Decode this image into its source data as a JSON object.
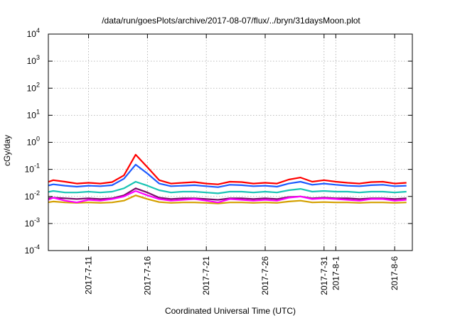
{
  "chart_data": {
    "type": "line",
    "title": "/data/run/goesPlots/archive/2017-08-07/flux/../bryn/31daysMoon.plot",
    "xlabel": "Coordinated Universal Time (UTC)",
    "ylabel": "cGy/day",
    "yscale": "log",
    "ylim": [
      0.0001,
      10000
    ],
    "xlim": [
      "2017-07-07T14:00",
      "2017-08-07T12:00"
    ],
    "grid": true,
    "y_ticks": [
      {
        "value": 0.0001,
        "base": "10",
        "exp": "-4"
      },
      {
        "value": 0.001,
        "base": "10",
        "exp": "-3"
      },
      {
        "value": 0.01,
        "base": "10",
        "exp": "-2"
      },
      {
        "value": 0.1,
        "base": "10",
        "exp": "-1"
      },
      {
        "value": 1,
        "base": "10",
        "exp": "0"
      },
      {
        "value": 10,
        "base": "10",
        "exp": "1"
      },
      {
        "value": 100,
        "base": "10",
        "exp": "2"
      },
      {
        "value": 1000,
        "base": "10",
        "exp": "3"
      },
      {
        "value": 10000,
        "base": "10",
        "exp": "4"
      }
    ],
    "x_ticks": [
      {
        "date": "2017-07-11",
        "label": "2017-7-11"
      },
      {
        "date": "2017-07-16",
        "label": "2017-7-16"
      },
      {
        "date": "2017-07-21",
        "label": "2017-7-21"
      },
      {
        "date": "2017-07-26",
        "label": "2017-7-26"
      },
      {
        "date": "2017-07-31",
        "label": "2017-7-31"
      },
      {
        "date": "2017-08-01",
        "label": "2017-8-1"
      },
      {
        "date": "2017-08-06",
        "label": "2017-8-6"
      }
    ],
    "series": [
      {
        "color": "#ff0000",
        "x": [
          "2017-07-07",
          "2017-07-08",
          "2017-07-09",
          "2017-07-10",
          "2017-07-11",
          "2017-07-12",
          "2017-07-13",
          "2017-07-14",
          "2017-07-15",
          "2017-07-16",
          "2017-07-17",
          "2017-07-18",
          "2017-07-19",
          "2017-07-20",
          "2017-07-21",
          "2017-07-22",
          "2017-07-23",
          "2017-07-24",
          "2017-07-25",
          "2017-07-26",
          "2017-07-27",
          "2017-07-28",
          "2017-07-29",
          "2017-07-30",
          "2017-07-31",
          "2017-08-01",
          "2017-08-02",
          "2017-08-03",
          "2017-08-04",
          "2017-08-05",
          "2017-08-06",
          "2017-08-07"
        ],
        "y": [
          0.028,
          0.04,
          0.035,
          0.03,
          0.032,
          0.03,
          0.034,
          0.06,
          0.35,
          0.12,
          0.04,
          0.03,
          0.032,
          0.034,
          0.03,
          0.028,
          0.035,
          0.034,
          0.03,
          0.032,
          0.03,
          0.042,
          0.05,
          0.035,
          0.04,
          0.035,
          0.032,
          0.03,
          0.034,
          0.035,
          0.03,
          0.032
        ]
      },
      {
        "color": "#1e5bff",
        "x": [
          "2017-07-07",
          "2017-07-08",
          "2017-07-09",
          "2017-07-10",
          "2017-07-11",
          "2017-07-12",
          "2017-07-13",
          "2017-07-14",
          "2017-07-15",
          "2017-07-16",
          "2017-07-17",
          "2017-07-18",
          "2017-07-19",
          "2017-07-20",
          "2017-07-21",
          "2017-07-22",
          "2017-07-23",
          "2017-07-24",
          "2017-07-25",
          "2017-07-26",
          "2017-07-27",
          "2017-07-28",
          "2017-07-29",
          "2017-07-30",
          "2017-07-31",
          "2017-08-01",
          "2017-08-02",
          "2017-08-03",
          "2017-08-04",
          "2017-08-05",
          "2017-08-06",
          "2017-08-07"
        ],
        "y": [
          0.022,
          0.028,
          0.025,
          0.023,
          0.025,
          0.024,
          0.026,
          0.045,
          0.15,
          0.07,
          0.03,
          0.024,
          0.025,
          0.026,
          0.024,
          0.022,
          0.027,
          0.026,
          0.024,
          0.025,
          0.023,
          0.03,
          0.035,
          0.027,
          0.03,
          0.027,
          0.025,
          0.024,
          0.026,
          0.027,
          0.024,
          0.025
        ]
      },
      {
        "color": "#19c4b4",
        "x": [
          "2017-07-07",
          "2017-07-08",
          "2017-07-09",
          "2017-07-10",
          "2017-07-11",
          "2017-07-12",
          "2017-07-13",
          "2017-07-14",
          "2017-07-15",
          "2017-07-16",
          "2017-07-17",
          "2017-07-18",
          "2017-07-19",
          "2017-07-20",
          "2017-07-21",
          "2017-07-22",
          "2017-07-23",
          "2017-07-24",
          "2017-07-25",
          "2017-07-26",
          "2017-07-27",
          "2017-07-28",
          "2017-07-29",
          "2017-07-30",
          "2017-07-31",
          "2017-08-01",
          "2017-08-02",
          "2017-08-03",
          "2017-08-04",
          "2017-08-05",
          "2017-08-06",
          "2017-08-07"
        ],
        "y": [
          0.013,
          0.016,
          0.014,
          0.014,
          0.015,
          0.014,
          0.015,
          0.02,
          0.035,
          0.025,
          0.017,
          0.014,
          0.015,
          0.015,
          0.014,
          0.013,
          0.015,
          0.015,
          0.014,
          0.015,
          0.014,
          0.017,
          0.019,
          0.015,
          0.016,
          0.015,
          0.015,
          0.014,
          0.015,
          0.015,
          0.014,
          0.015
        ]
      },
      {
        "color": "#7c0f6b",
        "x": [
          "2017-07-07",
          "2017-07-08",
          "2017-07-09",
          "2017-07-10",
          "2017-07-11",
          "2017-07-12",
          "2017-07-13",
          "2017-07-14",
          "2017-07-15",
          "2017-07-16",
          "2017-07-17",
          "2017-07-18",
          "2017-07-19",
          "2017-07-20",
          "2017-07-21",
          "2017-07-22",
          "2017-07-23",
          "2017-07-24",
          "2017-07-25",
          "2017-07-26",
          "2017-07-27",
          "2017-07-28",
          "2017-07-29",
          "2017-07-30",
          "2017-07-31",
          "2017-08-01",
          "2017-08-02",
          "2017-08-03",
          "2017-08-04",
          "2017-08-05",
          "2017-08-06",
          "2017-08-07"
        ],
        "y": [
          0.008,
          0.009,
          0.0085,
          0.008,
          0.0085,
          0.008,
          0.0085,
          0.011,
          0.02,
          0.014,
          0.009,
          0.008,
          0.0085,
          0.0085,
          0.008,
          0.0075,
          0.0085,
          0.0085,
          0.008,
          0.0085,
          0.008,
          0.0095,
          0.01,
          0.0085,
          0.009,
          0.0085,
          0.0085,
          0.008,
          0.0085,
          0.0085,
          0.008,
          0.0085
        ]
      },
      {
        "color": "#d4a000",
        "x": [
          "2017-07-07",
          "2017-07-08",
          "2017-07-09",
          "2017-07-10",
          "2017-07-11",
          "2017-07-12",
          "2017-07-13",
          "2017-07-14",
          "2017-07-15",
          "2017-07-16",
          "2017-07-17",
          "2017-07-18",
          "2017-07-19",
          "2017-07-20",
          "2017-07-21",
          "2017-07-22",
          "2017-07-23",
          "2017-07-24",
          "2017-07-25",
          "2017-07-26",
          "2017-07-27",
          "2017-07-28",
          "2017-07-29",
          "2017-07-30",
          "2017-07-31",
          "2017-08-01",
          "2017-08-02",
          "2017-08-03",
          "2017-08-04",
          "2017-08-05",
          "2017-08-06",
          "2017-08-07"
        ],
        "y": [
          0.0055,
          0.0065,
          0.006,
          0.0058,
          0.006,
          0.0058,
          0.006,
          0.007,
          0.011,
          0.008,
          0.0062,
          0.0058,
          0.006,
          0.006,
          0.0058,
          0.0055,
          0.006,
          0.006,
          0.0058,
          0.006,
          0.0058,
          0.0065,
          0.007,
          0.006,
          0.0062,
          0.006,
          0.006,
          0.0058,
          0.006,
          0.006,
          0.0058,
          0.006
        ]
      },
      {
        "color": "#ff00ff",
        "x": [
          "2017-07-07",
          "2017-07-08",
          "2017-07-09",
          "2017-07-10",
          "2017-07-11",
          "2017-07-12",
          "2017-07-13",
          "2017-07-14",
          "2017-07-15",
          "2017-07-16",
          "2017-07-17",
          "2017-07-18",
          "2017-07-19",
          "2017-07-20",
          "2017-07-21",
          "2017-07-22",
          "2017-07-23",
          "2017-07-24",
          "2017-07-25",
          "2017-07-26",
          "2017-07-27",
          "2017-07-28",
          "2017-07-29",
          "2017-07-30",
          "2017-07-31",
          "2017-08-01",
          "2017-08-02",
          "2017-08-03",
          "2017-08-04",
          "2017-08-05",
          "2017-08-06",
          "2017-08-07"
        ],
        "y": [
          0.006,
          0.009,
          0.007,
          0.006,
          0.0075,
          0.007,
          0.008,
          0.01,
          0.016,
          0.011,
          0.008,
          0.007,
          0.0075,
          0.008,
          0.007,
          0.006,
          0.008,
          0.0075,
          0.007,
          0.0075,
          0.007,
          0.009,
          0.01,
          0.008,
          0.0085,
          0.008,
          0.0075,
          0.007,
          0.008,
          0.008,
          0.007,
          0.0075
        ]
      }
    ]
  }
}
